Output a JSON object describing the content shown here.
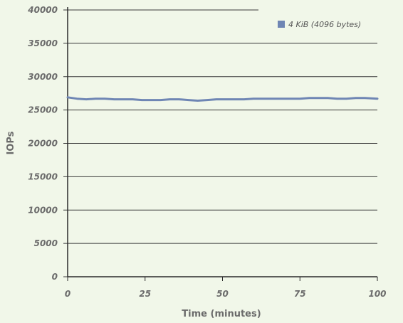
{
  "chart_data": {
    "type": "line",
    "title": "",
    "xlabel": "Time (minutes)",
    "ylabel": "IOPs",
    "xlim": [
      0,
      100
    ],
    "ylim": [
      0,
      40000
    ],
    "x_ticks": [
      "0",
      "25",
      "50",
      "75",
      "100"
    ],
    "y_ticks": [
      "0",
      "5000",
      "10000",
      "15000",
      "20000",
      "25000",
      "30000",
      "35000",
      "40000"
    ],
    "grid": "horizontal",
    "legend_position": "top-right",
    "series": [
      {
        "name": "4 KiB (4096 bytes)",
        "color": "#6f86b4",
        "x": [
          0,
          3,
          6,
          9,
          12,
          15,
          18,
          21,
          24,
          27,
          30,
          33,
          36,
          39,
          42,
          45,
          48,
          51,
          54,
          57,
          60,
          63,
          66,
          69,
          72,
          75,
          78,
          81,
          84,
          87,
          90,
          93,
          96,
          100
        ],
        "y": [
          26900,
          26700,
          26600,
          26700,
          26700,
          26600,
          26600,
          26600,
          26500,
          26500,
          26500,
          26600,
          26600,
          26500,
          26400,
          26500,
          26600,
          26600,
          26600,
          26600,
          26700,
          26700,
          26700,
          26700,
          26700,
          26700,
          26800,
          26800,
          26800,
          26700,
          26700,
          26800,
          26800,
          26700
        ]
      }
    ]
  }
}
